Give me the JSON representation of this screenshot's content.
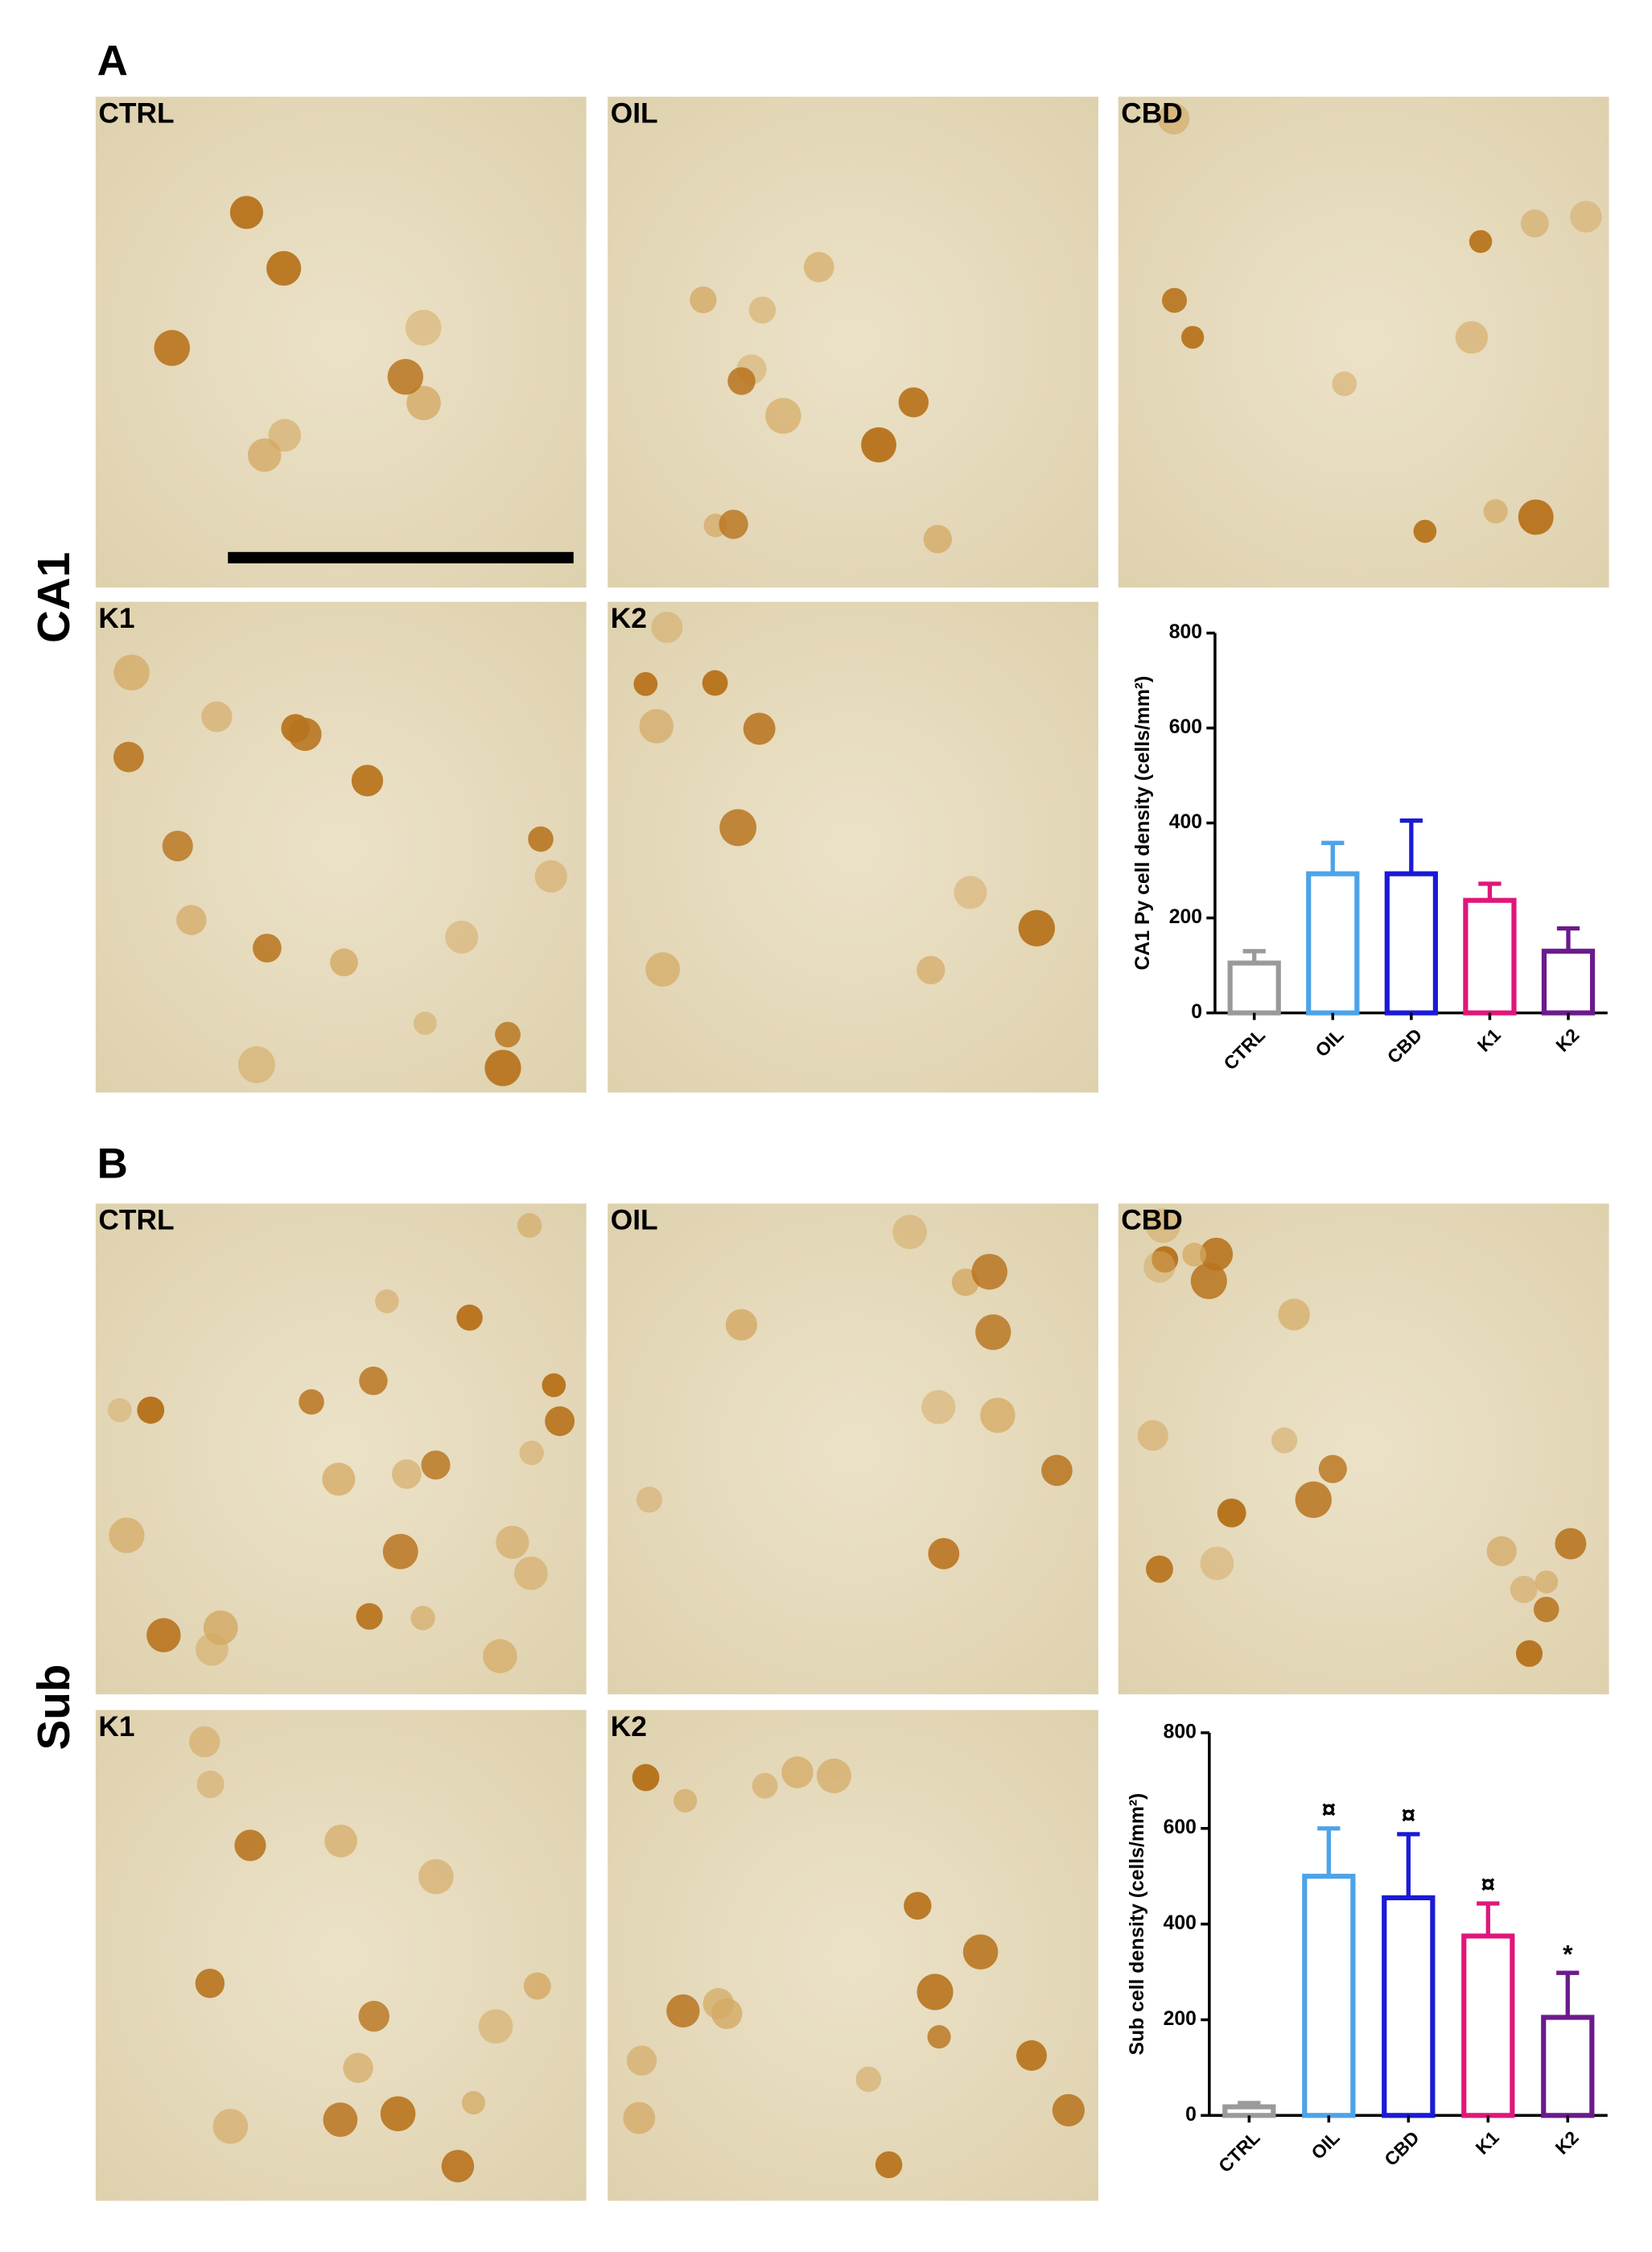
{
  "figure": {
    "panels": [
      {
        "letter": "A",
        "region": "CA1",
        "images": [
          "CTRL",
          "OIL",
          "CBD",
          "K1",
          "K2"
        ]
      },
      {
        "letter": "B",
        "region": "Sub",
        "images": [
          "CTRL",
          "OIL",
          "CBD",
          "K1",
          "K2"
        ]
      }
    ]
  },
  "chart_data": [
    {
      "type": "bar",
      "ylabel": "CA1 Py cell density (cells/mm²)",
      "categories": [
        "CTRL",
        "OIL",
        "CBD",
        "K1",
        "K2"
      ],
      "values": [
        105,
        293,
        293,
        237,
        130
      ],
      "errors": [
        25,
        65,
        112,
        35,
        48
      ],
      "colors": [
        "#9a9a9a",
        "#4da3e8",
        "#1a1ad6",
        "#e0177a",
        "#6b1a8c"
      ],
      "ylim": [
        0,
        800
      ],
      "yticks": [
        0,
        200,
        400,
        600,
        800
      ]
    },
    {
      "type": "bar",
      "ylabel": "Sub cell density (cells/mm²)",
      "categories": [
        "CTRL",
        "OIL",
        "CBD",
        "K1",
        "K2"
      ],
      "values": [
        18,
        500,
        455,
        375,
        205
      ],
      "errors": [
        8,
        100,
        133,
        68,
        93
      ],
      "annotations": [
        null,
        "¤",
        "¤",
        "¤",
        "*"
      ],
      "colors": [
        "#9a9a9a",
        "#4da3e8",
        "#1a1ad6",
        "#e0177a",
        "#6b1a8c"
      ],
      "ylim": [
        0,
        800
      ],
      "yticks": [
        0,
        200,
        400,
        600,
        800
      ]
    }
  ]
}
